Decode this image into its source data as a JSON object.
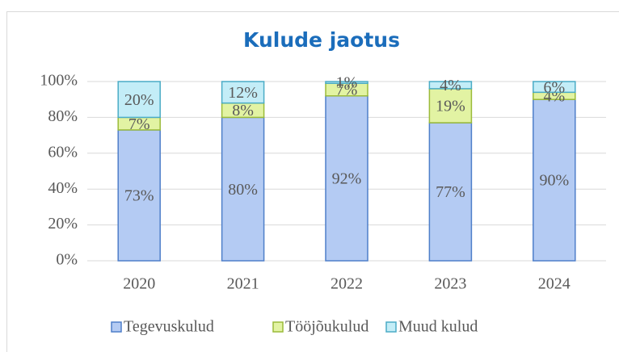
{
  "chart_data": {
    "type": "stacked_bar",
    "title": "Kulude jaotus",
    "categories": [
      "2020",
      "2021",
      "2022",
      "2023",
      "2024"
    ],
    "series": [
      {
        "name": "Tegevuskulud",
        "color": "#b4cbf3",
        "stroke": "#4f7fc9",
        "values": [
          73,
          80,
          92,
          77,
          90
        ],
        "value_labels": [
          "73%",
          "80%",
          "92%",
          "77%",
          "90%"
        ]
      },
      {
        "name": "Tööjõukulud",
        "color": "#e2f3a3",
        "stroke": "#9bbb3a",
        "values": [
          7,
          8,
          7,
          19,
          4
        ],
        "value_labels": [
          "7%",
          "8%",
          "7%",
          "19%",
          "4%"
        ]
      },
      {
        "name": "Muud kulud",
        "color": "#c3edf7",
        "stroke": "#4bacc6",
        "values": [
          20,
          12,
          1,
          4,
          6
        ],
        "value_labels": [
          "20%",
          "12%",
          "1%",
          "4%",
          "6%"
        ]
      }
    ],
    "ylim": [
      0,
      100
    ],
    "yticks": [
      {
        "value": 0,
        "label": "0%"
      },
      {
        "value": 20,
        "label": "20%"
      },
      {
        "value": 40,
        "label": "40%"
      },
      {
        "value": 60,
        "label": "60%"
      },
      {
        "value": 80,
        "label": "80%"
      },
      {
        "value": 100,
        "label": "100%"
      }
    ],
    "grid": true,
    "legend": "bottom"
  }
}
